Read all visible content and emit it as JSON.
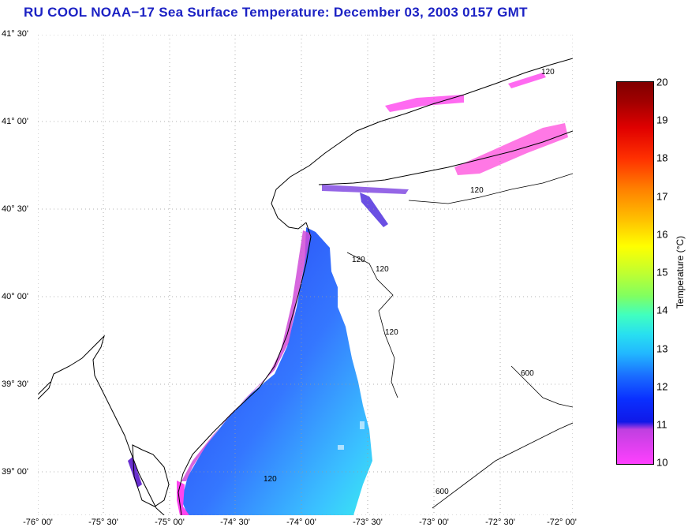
{
  "title": "RU COOL  NOAA−17  Sea Surface Temperature:  December 03, 2003 0157 GMT",
  "map": {
    "lat_ticks": [
      "41° 30'",
      "41° 00'",
      "40° 30'",
      "40° 00'",
      "39° 30'",
      "39° 00'"
    ],
    "lon_ticks": [
      "-76° 00'",
      "-75° 30'",
      "-75° 00'",
      "-74° 30'",
      "-74° 00'",
      "-73° 30'",
      "-73° 00'",
      "-72° 30'",
      "-72° 00'"
    ],
    "lat_range": [
      38.75,
      41.5
    ],
    "lon_range": [
      -76.0,
      -72.0
    ],
    "grid": "dotted",
    "isobath_labels": [
      "120",
      "120",
      "120",
      "120",
      "120",
      "120",
      "600",
      "600"
    ],
    "land_color": "#ffffff",
    "coast_color": "#000000"
  },
  "colorbar": {
    "label": "Temperature (°C)",
    "ticks": [
      "20",
      "19",
      "18",
      "17",
      "16",
      "15",
      "14",
      "13",
      "12",
      "11",
      "10"
    ],
    "range": [
      10,
      20
    ],
    "colors": [
      "#ff40ff",
      "#1018e8",
      "#22b8ff",
      "#40ffc0",
      "#ffff00",
      "#ff8000",
      "#e00000",
      "#800000"
    ]
  }
}
